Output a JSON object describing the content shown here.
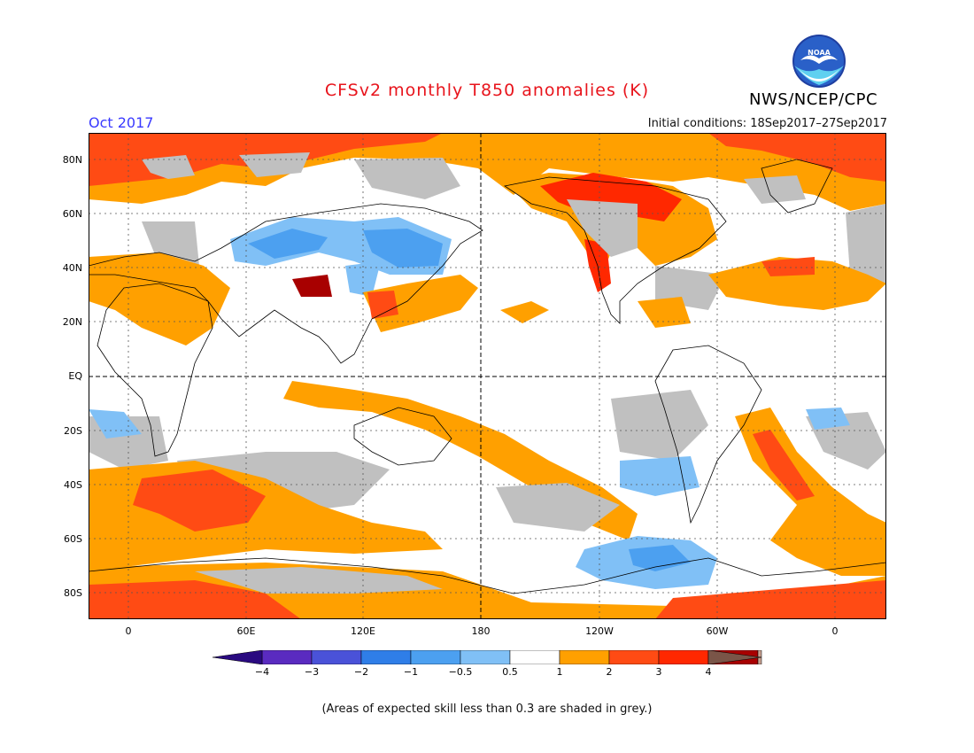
{
  "header": {
    "title": "CFSv2 monthly T850 anomalies (K)",
    "month": "Oct 2017",
    "initial_conditions": "Initial conditions: 18Sep2017–27Sep2017",
    "agency": "NWS/NCEP/CPC",
    "logo_text": "NOAA",
    "logo_icon": "noaa-logo-icon"
  },
  "map": {
    "projection": "equirectangular",
    "lat_labels": [
      "80N",
      "60N",
      "40N",
      "20N",
      "EQ",
      "20S",
      "40S",
      "60S",
      "80S"
    ],
    "lon_labels": [
      "0",
      "60E",
      "120E",
      "180",
      "120W",
      "60W",
      "0"
    ],
    "colors": {
      "neg4": "#3a10a0",
      "neg3": "#4a46d8",
      "neg2": "#2f7ee8",
      "neg1": "#4ca0f0",
      "neg05": "#7ec0f6",
      "neutral": "#ffffff",
      "pos05": "#ffa000",
      "pos1": "#ff4010",
      "pos2": "#ff2800",
      "pos3": "#a80000",
      "pos4": "#c8a090",
      "grey": "#c0c0c0"
    }
  },
  "legend": {
    "labels": [
      "−4",
      "−3",
      "−2",
      "−1",
      "−0.5",
      "0.5",
      "1",
      "2",
      "3",
      "4"
    ],
    "colors": [
      "#5a2bc0",
      "#4a52d8",
      "#2f7ee8",
      "#4ca0f0",
      "#80c0f6",
      "#ffffff",
      "#ffa000",
      "#ff4b14",
      "#ff2800",
      "#a80000",
      "#c8a090"
    ],
    "end_low": "#2a0a80",
    "end_high": "#7a5548"
  },
  "footnote": "(Areas of expected skill less than 0.3 are shaded in grey.)"
}
